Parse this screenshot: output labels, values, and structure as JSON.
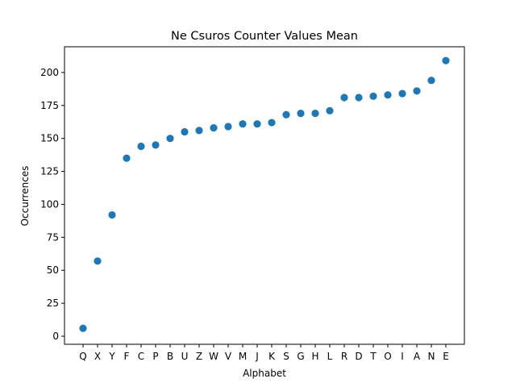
{
  "chart_data": {
    "type": "scatter",
    "title": "Ne Csuros Counter Values Mean",
    "xlabel": "Alphabet",
    "ylabel": "Occurrences",
    "categories": [
      "Q",
      "X",
      "Y",
      "F",
      "C",
      "P",
      "B",
      "U",
      "Z",
      "W",
      "V",
      "M",
      "J",
      "K",
      "S",
      "G",
      "H",
      "L",
      "R",
      "D",
      "T",
      "O",
      "I",
      "A",
      "N",
      "E"
    ],
    "values": [
      6,
      57,
      92,
      135,
      144,
      145,
      150,
      155,
      156,
      158,
      159,
      161,
      161,
      162,
      168,
      169,
      169,
      171,
      181,
      181,
      182,
      183,
      184,
      186,
      194,
      209
    ],
    "ylim": [
      -6.1,
      219.5
    ],
    "yticks": [
      0,
      25,
      50,
      75,
      100,
      125,
      150,
      175,
      200
    ],
    "grid": false,
    "legend": "none",
    "marker_color": "#1f77b4"
  }
}
